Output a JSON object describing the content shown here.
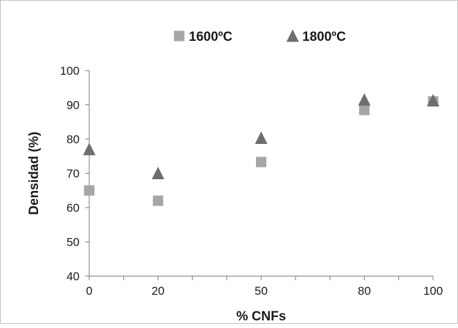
{
  "chart_data": {
    "type": "scatter",
    "title": "",
    "xlabel": "% CNFs",
    "ylabel": "Densidad  (%)",
    "xlim": [
      0,
      100
    ],
    "ylim": [
      40,
      100
    ],
    "x_ticks": [
      0,
      20,
      50,
      80,
      100
    ],
    "y_ticks": [
      40,
      50,
      60,
      70,
      80,
      90,
      100
    ],
    "grid": false,
    "legend_position": "top",
    "series": [
      {
        "name": "1600ºC",
        "marker": "square",
        "color": "#a6a6a6",
        "x": [
          0,
          20,
          50,
          80,
          100
        ],
        "y": [
          65,
          62,
          73.3,
          88.5,
          91
        ]
      },
      {
        "name": "1800ºC",
        "marker": "triangle",
        "color": "#6e6e6e",
        "x": [
          0,
          20,
          50,
          80,
          100
        ],
        "y": [
          77,
          70,
          80.3,
          91.5,
          91.3
        ]
      }
    ]
  }
}
